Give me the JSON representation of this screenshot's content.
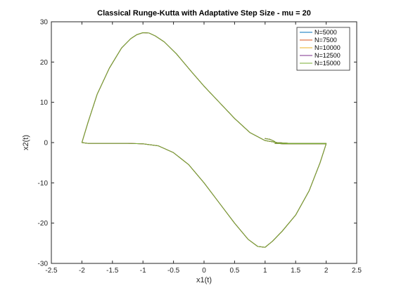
{
  "chart_data": {
    "type": "line",
    "title": "Classical Runge-Kutta with Adaptative Step Size - mu = 20",
    "xlabel": "x1(t)",
    "ylabel": "x2(t)",
    "xlim": [
      -2.5,
      2.5
    ],
    "ylim": [
      -30,
      30
    ],
    "xticks": [
      -2.5,
      -2,
      -1.5,
      -1,
      -0.5,
      0,
      0.5,
      1,
      1.5,
      2,
      2.5
    ],
    "xtick_labels": [
      "-2.5",
      "-2",
      "-1.5",
      "-1",
      "-0.5",
      "0",
      "0.5",
      "1",
      "1.5",
      "2",
      "2.5"
    ],
    "yticks": [
      -30,
      -20,
      -10,
      0,
      10,
      20,
      30
    ],
    "ytick_labels": [
      "-30",
      "-20",
      "-10",
      "0",
      "10",
      "20",
      "30"
    ],
    "grid": false,
    "legend_position": "top-right",
    "legend": [
      "N=5000",
      "N=7500",
      "N=10000",
      "N=12500",
      "N=15000"
    ],
    "series_colors": [
      "#0072BD",
      "#D95319",
      "#EDB120",
      "#7E2F8E",
      "#77AC30"
    ],
    "trajectory": {
      "x": [
        1.0,
        1.08,
        1.14,
        1.18,
        1.16,
        1.3,
        1.5,
        1.7,
        1.85,
        1.95,
        2.0,
        1.9,
        1.72,
        1.5,
        1.28,
        1.12,
        1.0,
        0.88,
        0.72,
        0.5,
        0.25,
        0.0,
        -0.25,
        -0.5,
        -0.75,
        -1.0,
        -1.25,
        -1.5,
        -1.75,
        -1.9,
        -2.0,
        -1.9,
        -1.75,
        -1.55,
        -1.35,
        -1.2,
        -1.1,
        -1.0,
        -0.9,
        -0.8,
        -0.65,
        -0.45,
        -0.2,
        0.0,
        0.25,
        0.5,
        0.75,
        1.0,
        1.2,
        1.4,
        1.55,
        1.7,
        1.8,
        1.88,
        1.94,
        1.98,
        2.0
      ],
      "y": [
        1.0,
        0.8,
        0.4,
        0.0,
        -0.2,
        -0.3,
        -0.3,
        -0.3,
        -0.3,
        -0.3,
        -0.3,
        -5.0,
        -12.0,
        -18.0,
        -22.0,
        -24.5,
        -26.0,
        -25.8,
        -24.0,
        -20.0,
        -15.0,
        -10.0,
        -5.5,
        -2.5,
        -0.8,
        -0.3,
        -0.2,
        -0.2,
        -0.2,
        -0.2,
        0.0,
        5.0,
        12.0,
        18.5,
        23.5,
        25.8,
        26.8,
        27.3,
        27.2,
        26.5,
        25.0,
        22.0,
        17.5,
        14.0,
        10.0,
        6.0,
        2.5,
        0.5,
        0.0,
        -0.2,
        -0.2,
        -0.2,
        -0.2,
        -0.2,
        -0.2,
        -0.2,
        -0.2
      ]
    }
  }
}
